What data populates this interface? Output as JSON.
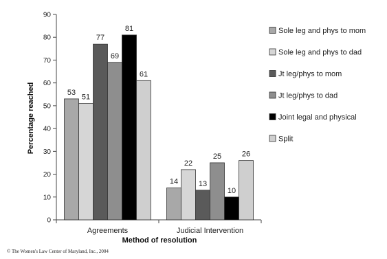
{
  "chart_data": {
    "type": "bar",
    "xlabel": "Method of resolution",
    "ylabel": "Percentage reached",
    "ylim": [
      0,
      90
    ],
    "yticks": [
      0,
      10,
      20,
      30,
      40,
      50,
      60,
      70,
      80,
      90
    ],
    "categories": [
      "Agreements",
      "Judicial Intervention"
    ],
    "series": [
      {
        "name": "Sole leg and phys to mom",
        "values": [
          53,
          14
        ],
        "color": "#a8a8a8"
      },
      {
        "name": "Sole leg and phys to dad",
        "values": [
          51,
          22
        ],
        "color": "#d6d6d6"
      },
      {
        "name": "Jt leg/phys to mom",
        "values": [
          77,
          13
        ],
        "color": "#5a5a5a"
      },
      {
        "name": "Jt leg/phys to dad",
        "values": [
          69,
          25
        ],
        "color": "#8e8e8e"
      },
      {
        "name": "Joint legal and physical",
        "values": [
          81,
          10
        ],
        "color": "#000000"
      },
      {
        "name": "Split",
        "values": [
          61,
          26
        ],
        "color": "#cfcfcf"
      }
    ],
    "legend_position": "right",
    "grid": false
  },
  "footer": "© The Women's Law Center of Maryland, Inc., 2004"
}
